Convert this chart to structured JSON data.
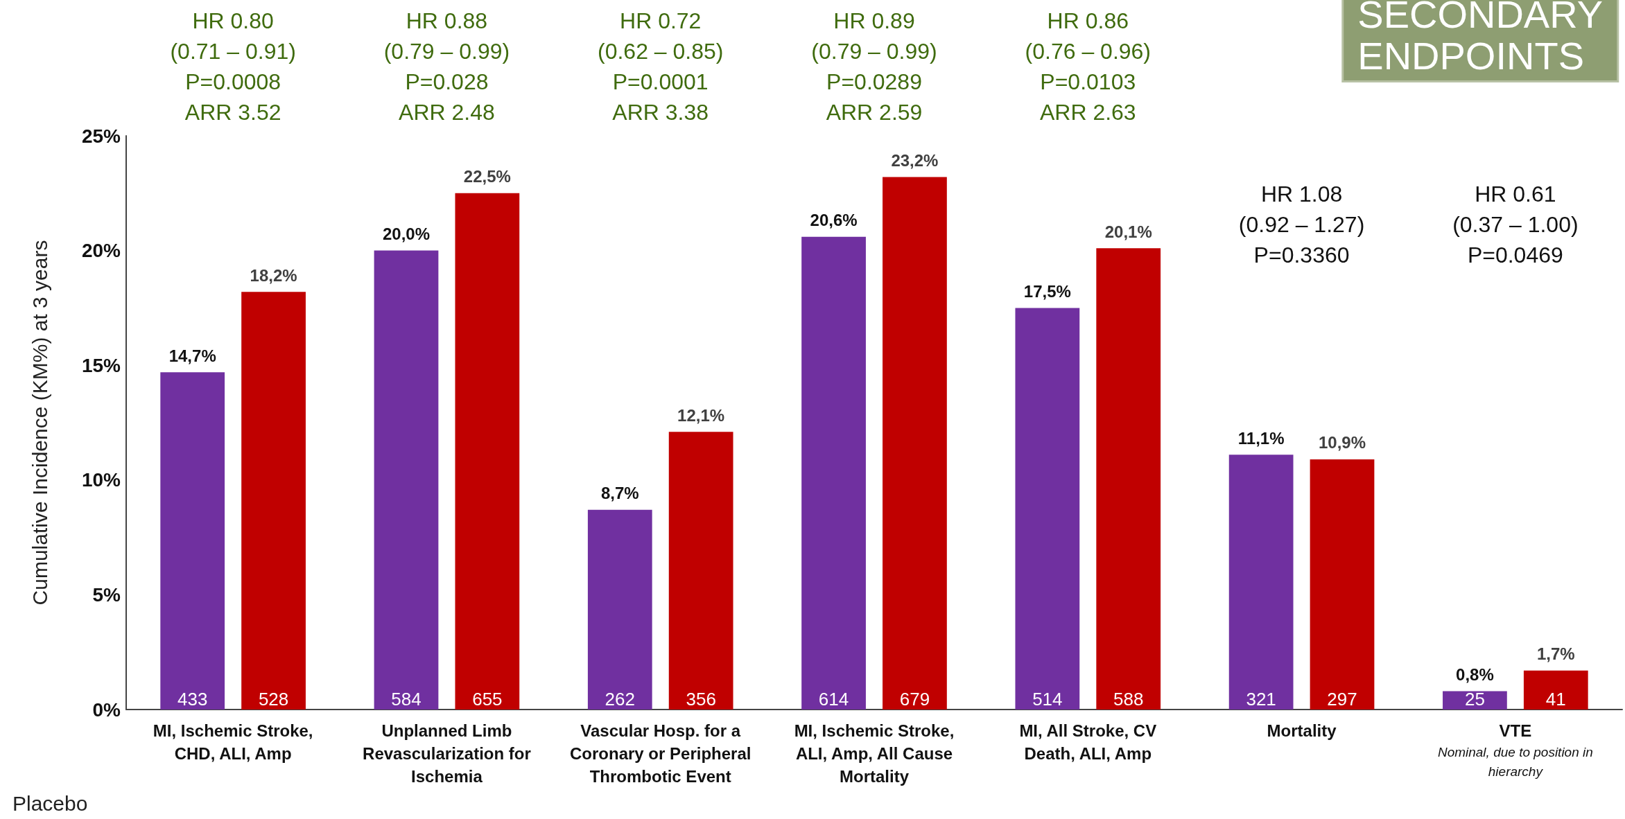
{
  "chart_data": {
    "type": "bar",
    "title": "SECONDARY\nENDPOINTS",
    "ylabel": "Cumulative Incidence (KM%) at 3 years",
    "categories": [
      "MI, Ischemic Stroke, CHD, ALI, Amp",
      "Unplanned Limb Revascularization for Ischemia",
      "Vascular Hosp. for a Coronary or Peripheral Thrombotic Event",
      "MI, Ischemic Stroke, ALI, Amp, All Cause Mortality",
      "MI, All Stroke, CV Death, ALI, Amp",
      "Mortality",
      "VTE\nNominal, due to position in hierarchy"
    ],
    "series": [
      {
        "color": "#7030a0",
        "values": [
          14.7,
          20.0,
          8.7,
          20.6,
          17.5,
          11.1,
          0.8
        ],
        "value_labels": [
          "14,7%",
          "20,0%",
          "8,7%",
          "20,6%",
          "17,5%",
          "11,1%",
          "0,8%"
        ]
      },
      {
        "color": "#c00000",
        "values": [
          18.2,
          22.5,
          12.1,
          23.2,
          20.1,
          10.9,
          1.7
        ],
        "value_labels": [
          "18,2%",
          "22,5%",
          "12,1%",
          "23,2%",
          "20,1%",
          "10,9%",
          "1,7%"
        ]
      }
    ],
    "ylim": [
      0,
      25
    ],
    "yticks": [
      {
        "value": 0,
        "label": "0%"
      },
      {
        "value": 5,
        "label": "5%"
      },
      {
        "value": 10,
        "label": "10%"
      },
      {
        "value": 15,
        "label": "15%"
      },
      {
        "value": 20,
        "label": "20%"
      },
      {
        "value": 25,
        "label": "25%"
      }
    ],
    "grid": false,
    "annotations": [
      "HR 0.80\n(0.71 – 0.91)\nP=0.0008\nARR 3.52",
      "HR 0.88\n(0.79 – 0.99)\nP=0.028\nARR 2.48",
      "HR 0.72\n(0.62 – 0.85)\nP=0.0001\nARR 3.38",
      "HR 0.89\n(0.79 – 0.99)\nP=0.0289\nARR 2.59",
      "HR 0.86\n(0.76 – 0.96)\nP=0.0103\nARR 2.63",
      "HR 1.08\n(0.92 – 1.27)\nP=0.3360",
      "HR 0.61\n(0.37 – 1.00)\nP=0.0469",
      "433",
      "528",
      "584",
      "655",
      "262",
      "356",
      "614",
      "679",
      "514",
      "588",
      "321",
      "297",
      "25",
      "41",
      "Placebo"
    ]
  }
}
